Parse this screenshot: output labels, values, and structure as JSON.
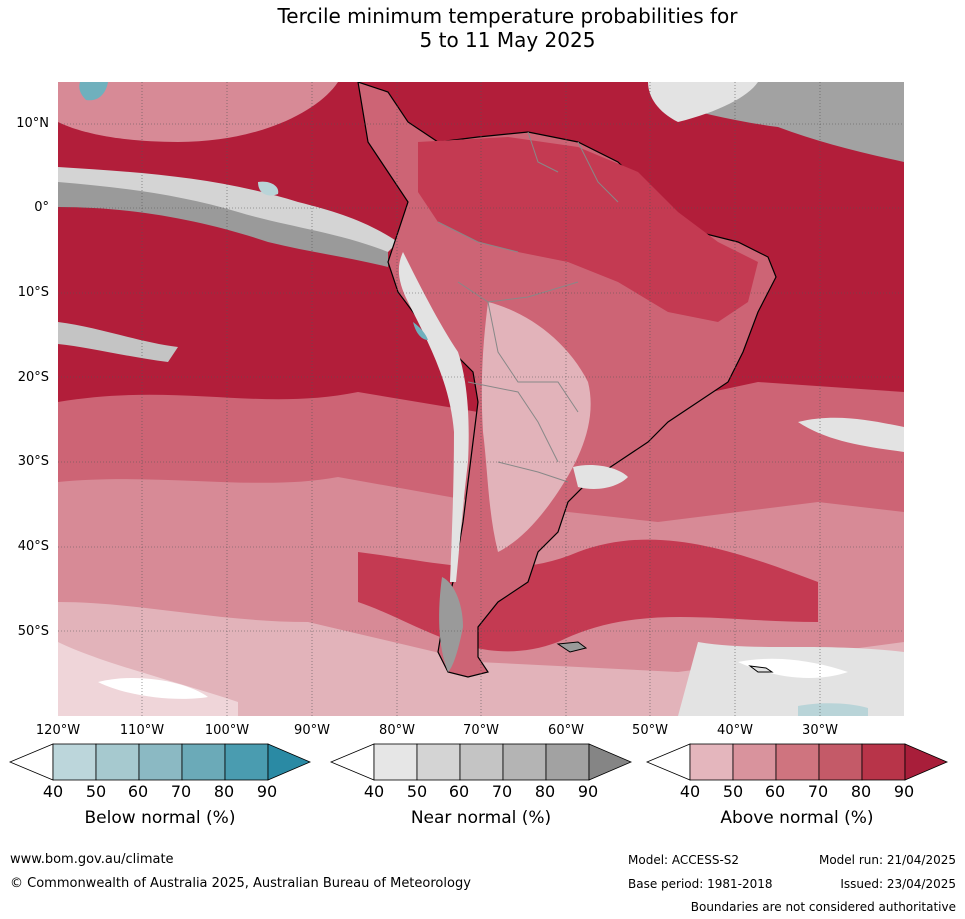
{
  "title": {
    "line1": "Tercile minimum temperature probabilities for",
    "line2": "5 to 11 May 2025"
  },
  "map": {
    "lat_labels": [
      "10°N",
      "0°",
      "10°S",
      "20°S",
      "30°S",
      "40°S",
      "50°S"
    ],
    "lon_labels": [
      "120°W",
      "110°W",
      "100°W",
      "90°W",
      "80°W",
      "70°W",
      "60°W",
      "50°W",
      "40°W",
      "30°W"
    ],
    "colors": {
      "above_90": "#b21e3a",
      "above_80": "#c43a52",
      "above_70": "#cd6475",
      "above_60": "#d78a96",
      "above_50": "#e2b3ba",
      "above_40": "#efd5d9",
      "near": "#e3e3e3",
      "near_dark": "#9a9a9a",
      "below": "#b9d4d8",
      "below_dark": "#6fb0bd",
      "land_edge": "#000000",
      "border": "#888888"
    }
  },
  "legends": [
    {
      "title": "Below normal (%)",
      "ticks": [
        "40",
        "50",
        "60",
        "70",
        "80",
        "90"
      ],
      "colors": [
        "#ffffff",
        "#bcd6db",
        "#a6c9cf",
        "#8bb9c3",
        "#6baab8",
        "#4a9cb0",
        "#2a8aa4"
      ]
    },
    {
      "title": "Near normal (%)",
      "ticks": [
        "40",
        "50",
        "60",
        "70",
        "80",
        "90"
      ],
      "colors": [
        "#ffffff",
        "#e6e6e6",
        "#d4d4d4",
        "#c4c4c4",
        "#b4b4b4",
        "#a2a2a2",
        "#858585"
      ]
    },
    {
      "title": "Above normal (%)",
      "ticks": [
        "40",
        "50",
        "60",
        "70",
        "80",
        "90"
      ],
      "colors": [
        "#ffffff",
        "#e4b6bd",
        "#d9939d",
        "#cf747f",
        "#c45a68",
        "#b83449",
        "#a81e3a"
      ]
    }
  ],
  "footer": {
    "website": "www.bom.gov.au/climate",
    "copyright": "© Commonwealth of Australia 2025, Australian Bureau of Meteorology",
    "model": "Model: ACCESS-S2",
    "model_run": "Model run: 21/04/2025",
    "base_period": "Base period: 1981-2018",
    "issued": "Issued: 23/04/2025",
    "boundaries": "Boundaries are not considered authoritative"
  }
}
